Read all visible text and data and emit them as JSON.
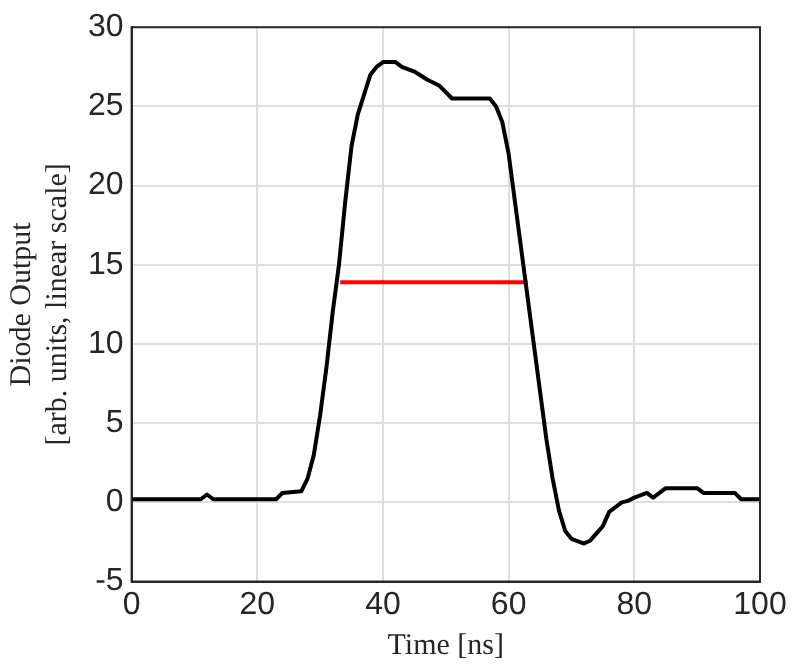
{
  "chart_data": {
    "type": "line",
    "xlabel": "Time [ns]",
    "ylabel": "Diode Output\n[arb. units, linear scale]",
    "xlim": [
      0,
      100
    ],
    "xticks": [
      0,
      20,
      40,
      60,
      80,
      100
    ],
    "ylim": [
      -5,
      30
    ],
    "yticks": [
      -5,
      0,
      5,
      10,
      15,
      20,
      25,
      30
    ],
    "grid": true,
    "legend": false,
    "marker": "none",
    "line_style": "solid",
    "series": [
      {
        "color": "#000000",
        "x": [
          0,
          11,
          12,
          13,
          23,
          24,
          27,
          28,
          29,
          30,
          31,
          32,
          33,
          34,
          35,
          36,
          38,
          39,
          40,
          42,
          43,
          45,
          47,
          49,
          51,
          57,
          58,
          59,
          60,
          61,
          62,
          63,
          64,
          65,
          66,
          67,
          68,
          69,
          70,
          72,
          73,
          75,
          76,
          78,
          79,
          80,
          82,
          83,
          85,
          90,
          91,
          96,
          97,
          100
        ],
        "values": [
          0.2,
          0.2,
          0.5,
          0.2,
          0.2,
          0.6,
          0.7,
          1.5,
          3,
          5.5,
          8.5,
          12,
          15,
          19,
          22.5,
          24.5,
          27,
          27.5,
          27.8,
          27.8,
          27.5,
          27.2,
          26.7,
          26.3,
          25.5,
          25.5,
          25,
          24,
          22,
          19,
          16,
          13,
          10,
          7,
          4,
          1.5,
          -0.5,
          -1.8,
          -2.3,
          -2.6,
          -2.4,
          -1.5,
          -0.6,
          0,
          0.1,
          0.3,
          0.6,
          0.3,
          0.9,
          0.9,
          0.6,
          0.6,
          0.2,
          0.2
        ]
      },
      {
        "color": "#ff0000",
        "x": [
          33.2,
          63
        ],
        "values": [
          13.9,
          13.9
        ]
      }
    ]
  }
}
